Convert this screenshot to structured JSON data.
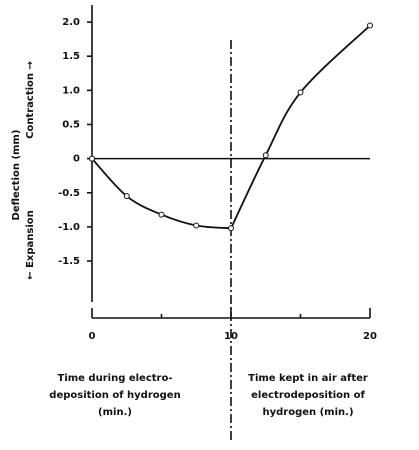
{
  "chart_data": {
    "type": "line",
    "x": [
      0,
      2.5,
      5,
      7.5,
      10,
      12.5,
      15,
      20
    ],
    "values": [
      0,
      -0.55,
      -0.82,
      -0.98,
      -1.02,
      0.05,
      0.97,
      1.95
    ],
    "color": "#111111",
    "xlim": [
      0,
      20
    ],
    "xticks": [
      0,
      10,
      20
    ],
    "xminorticks": [
      5,
      15
    ],
    "ylim": [
      -2.1,
      2.25
    ],
    "yticks": [
      {
        "value": 2,
        "label": "2.0"
      },
      {
        "value": 1.5,
        "label": "1.5"
      },
      {
        "value": 1,
        "label": "1.0"
      },
      {
        "value": 0.5,
        "label": "0.5"
      },
      0,
      {
        "value": -0.5,
        "label": "-0.5"
      },
      {
        "value": -1,
        "label": "-1.0"
      },
      {
        "value": -1.5,
        "label": "-1.5"
      }
    ],
    "zero_line": true,
    "divider_x": 10,
    "ylabel": "Deflection (mm)",
    "ylabel_up": "Contraction →",
    "ylabel_down": "← Expansion",
    "caption_left": [
      "Time during electro-",
      "deposition of hydrogen",
      "(min.)"
    ],
    "caption_right": [
      "Time kept in air after",
      "electrodeposition of",
      "hydrogen (min.)"
    ]
  }
}
